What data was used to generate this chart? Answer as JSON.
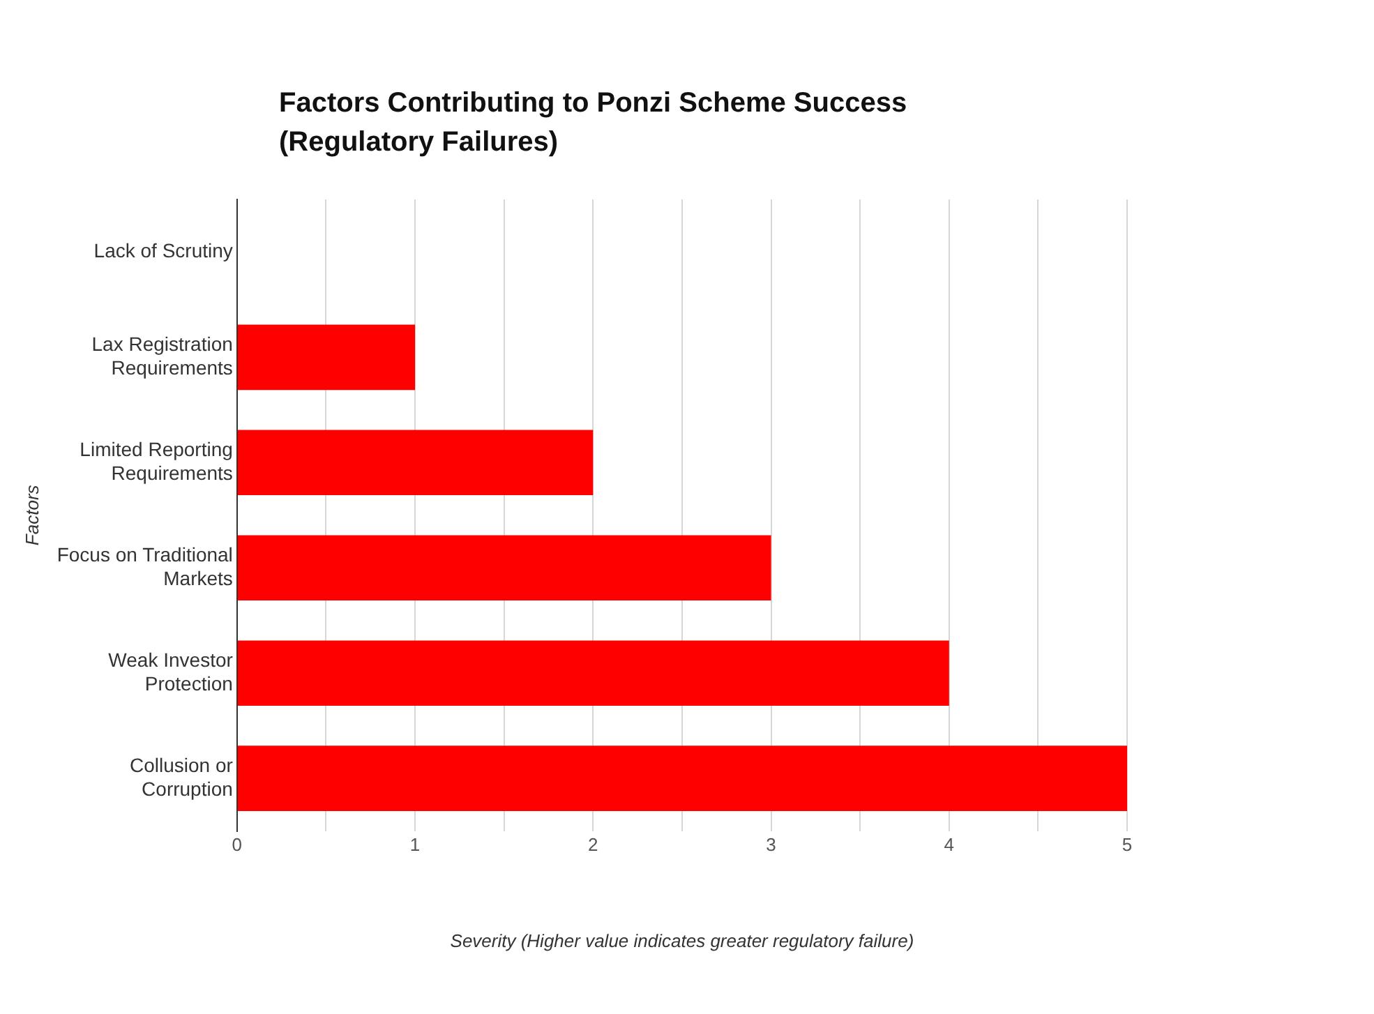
{
  "chart_data": {
    "type": "bar",
    "orientation": "horizontal",
    "title": "Factors Contributing to Ponzi Scheme Success (Regulatory Failures)",
    "xlabel": "Severity (Higher value indicates greater regulatory failure)",
    "ylabel": "Factors",
    "categories": [
      "Lack of Scrutiny",
      "Lax Registration Requirements",
      "Limited Reporting Requirements",
      "Focus on Traditional Markets",
      "Weak Investor Protection",
      "Collusion or Corruption"
    ],
    "values": [
      0,
      1,
      2,
      3,
      4,
      5
    ],
    "color": "#ff0000",
    "xlim": [
      0,
      5
    ],
    "xticks": [
      0,
      {
        "value": 0.5,
        "label": null
      },
      1,
      {
        "value": 1.5,
        "label": null
      },
      2,
      {
        "value": 2.5,
        "label": null
      },
      3,
      {
        "value": 3.5,
        "label": null
      },
      4,
      {
        "value": 4.5,
        "label": null
      },
      5
    ],
    "grid": "x",
    "legend": false
  }
}
